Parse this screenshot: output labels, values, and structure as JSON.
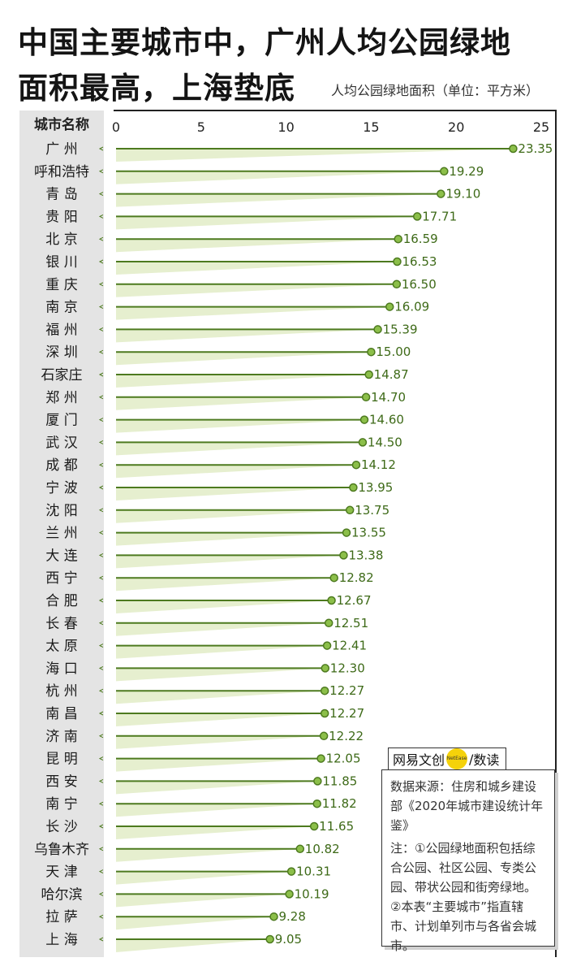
{
  "title_line1": "中国主要城市中，广州人均公园绿地",
  "title_line2": "面积最高，上海垫底",
  "unit_note": "人均公园绿地面积（单位：平方米）",
  "city_header": "城市名称",
  "logo": {
    "brand": "网易文创",
    "dot_text": "NetEase",
    "slash": "/",
    "product": "数读"
  },
  "note": {
    "source": "数据来源：住房和城乡建设部《2020年城市建设统计年鉴》",
    "text": "注：①公园绿地面积包括综合公园、社区公园、专类公园、带状公园和街旁绿地。②本表“主要城市”指直辖市、计划单列市与各省会城市。"
  },
  "colors": {
    "accent": "#4d7a1f",
    "marker_fill": "#8cbf4a",
    "wedge": "#e6efcf",
    "label": "#3e6a18"
  },
  "chart_data": {
    "type": "bar",
    "orientation": "horizontal",
    "style": "lollipop",
    "xlim": [
      0,
      25
    ],
    "xticks": [
      "0",
      "5",
      "10",
      "15",
      "20",
      "25"
    ],
    "ylabel": "城市名称",
    "xlabel": "人均公园绿地面积（单位：平方米）",
    "categories": [
      "广 州",
      "呼和浩特",
      "青 岛",
      "贵 阳",
      "北 京",
      "银 川",
      "重 庆",
      "南 京",
      "福 州",
      "深 圳",
      "石家庄",
      "郑 州",
      "厦 门",
      "武 汉",
      "成 都",
      "宁 波",
      "沈 阳",
      "兰 州",
      "大 连",
      "西 宁",
      "合 肥",
      "长 春",
      "太 原",
      "海 口",
      "杭 州",
      "南 昌",
      "济 南",
      "昆 明",
      "西 安",
      "南 宁",
      "长 沙",
      "乌鲁木齐",
      "天 津",
      "哈尔滨",
      "拉 萨",
      "上 海"
    ],
    "values": [
      23.35,
      19.29,
      19.1,
      17.71,
      16.59,
      16.53,
      16.5,
      16.09,
      15.39,
      15.0,
      14.87,
      14.7,
      14.6,
      14.5,
      14.12,
      13.95,
      13.75,
      13.55,
      13.38,
      12.82,
      12.67,
      12.51,
      12.41,
      12.3,
      12.27,
      12.27,
      12.22,
      12.05,
      11.85,
      11.82,
      11.65,
      10.82,
      10.31,
      10.19,
      9.28,
      9.05
    ],
    "value_labels": [
      "23.35",
      "19.29",
      "19.10",
      "17.71",
      "16.59",
      "16.53",
      "16.50",
      "16.09",
      "15.39",
      "15.00",
      "14.87",
      "14.70",
      "14.60",
      "14.50",
      "14.12",
      "13.95",
      "13.75",
      "13.55",
      "13.38",
      "12.82",
      "12.67",
      "12.51",
      "12.41",
      "12.30",
      "12.27",
      "12.27",
      "12.22",
      "12.05",
      "11.85",
      "11.82",
      "11.65",
      "10.82",
      "10.31",
      "10.19",
      "9.28",
      "9.05"
    ]
  }
}
